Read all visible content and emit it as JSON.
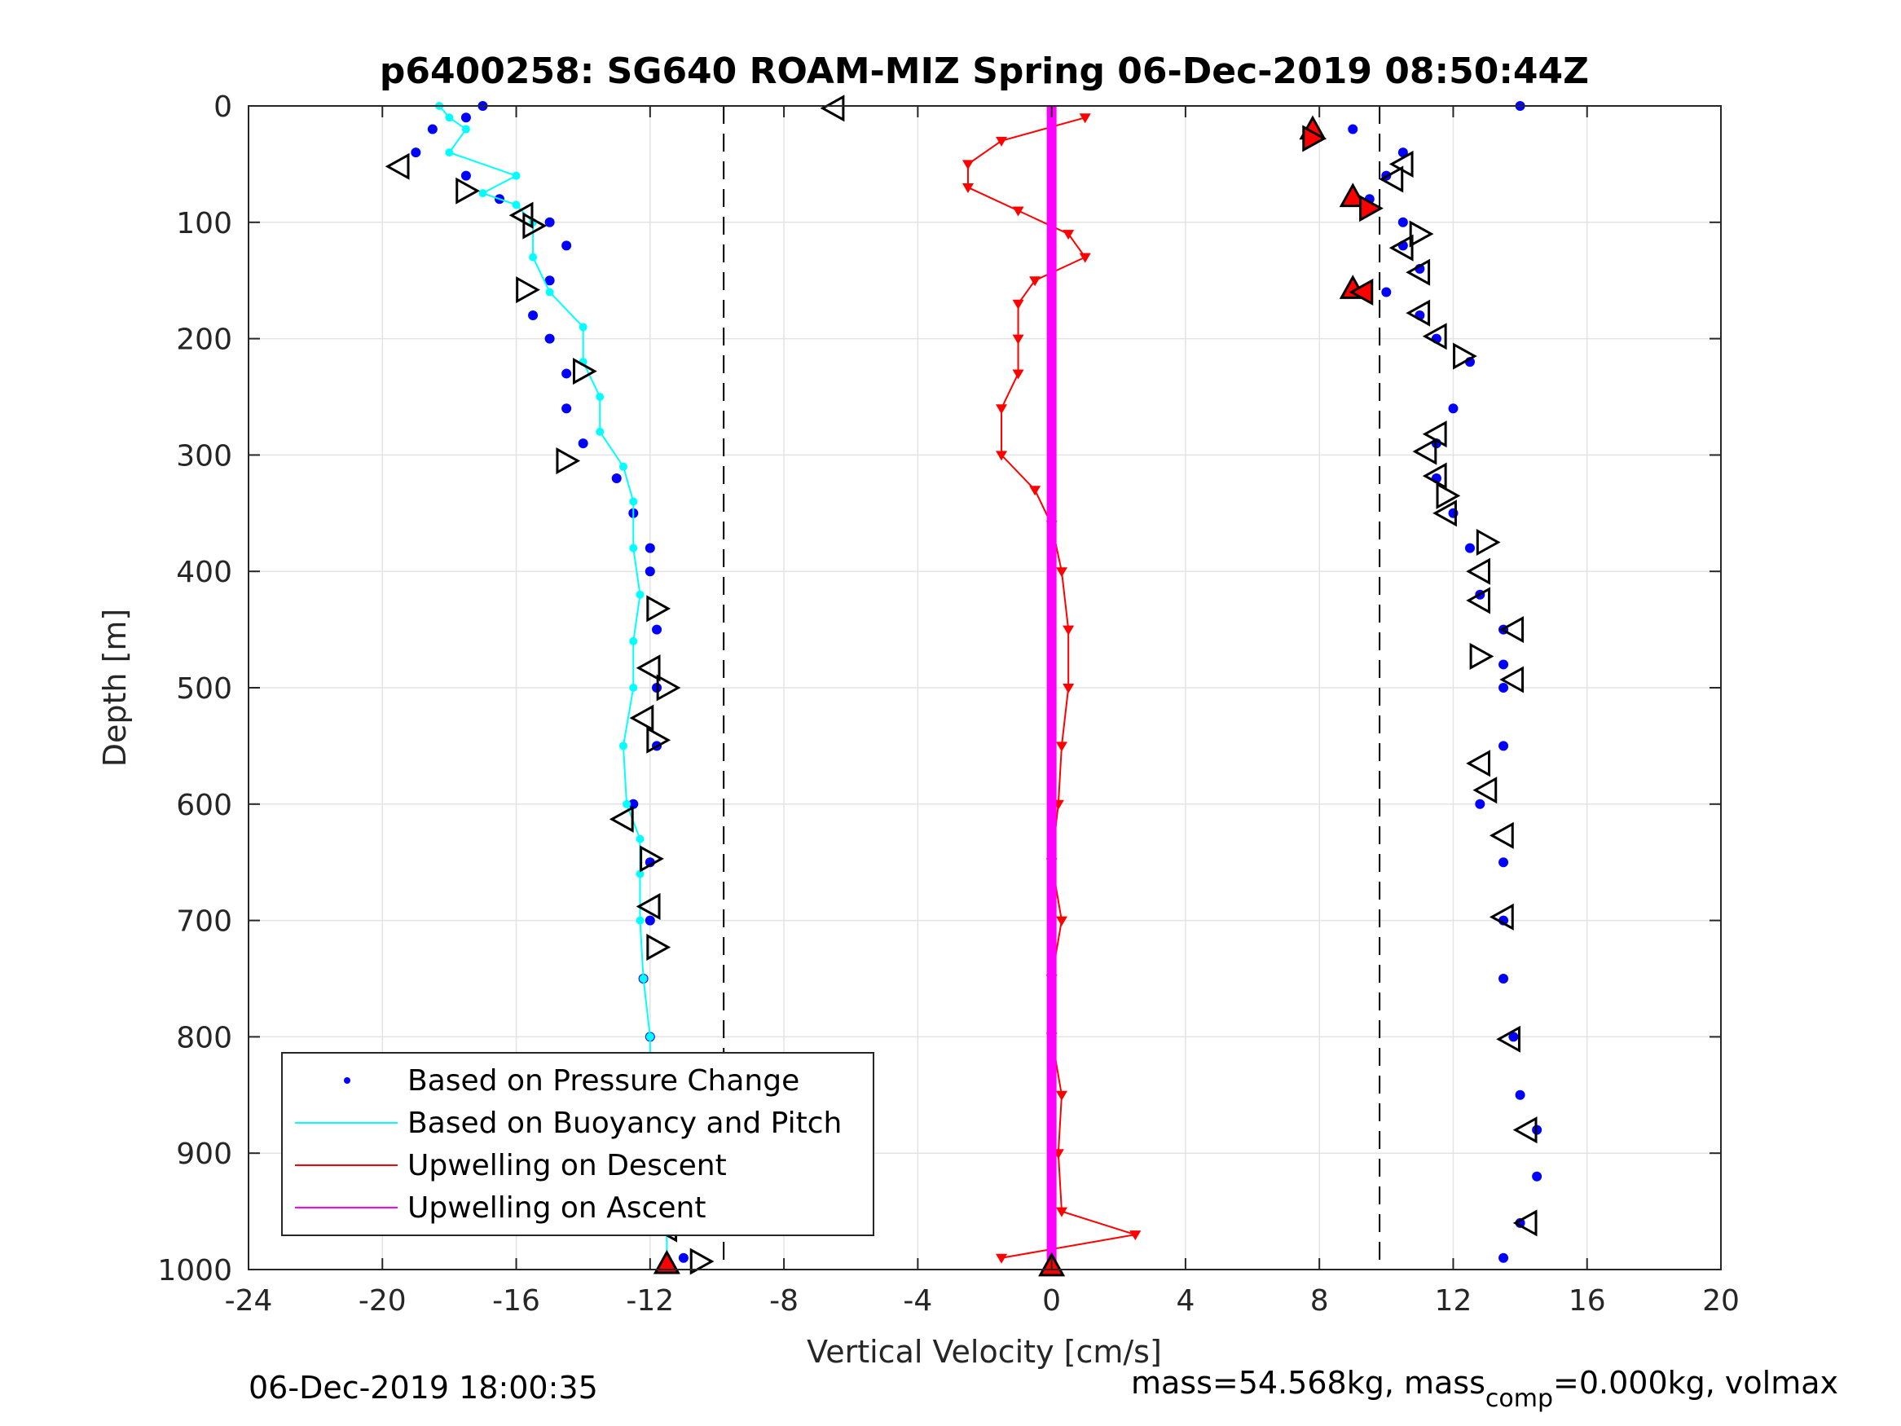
{
  "chart_data": {
    "type": "scatter",
    "title": "p6400258: SG640 ROAM-MIZ Spring 06-Dec-2019 08:50:44Z",
    "xlabel": "Vertical Velocity [cm/s]",
    "ylabel": "Depth [m]",
    "xlim": [
      -24,
      20
    ],
    "ylim": [
      0,
      1000
    ],
    "y_reversed": true,
    "grid": true,
    "x_ticks": [
      "-24",
      "-20",
      "-16",
      "-12",
      "-8",
      "-4",
      "0",
      "4",
      "8",
      "12",
      "16",
      "20"
    ],
    "y_ticks": [
      "0",
      "100",
      "200",
      "300",
      "400",
      "500",
      "600",
      "700",
      "800",
      "900",
      "1000"
    ],
    "dashed_vlines": [
      -9.8,
      9.8
    ],
    "legend_placement": "bottom-left",
    "legend": [
      {
        "label": "Based on Pressure Change",
        "color": "#0000ff",
        "style": "dots"
      },
      {
        "label": "Based on Buoyancy and Pitch",
        "color": "#00ffff",
        "style": "line"
      },
      {
        "label": "Upwelling on Descent",
        "color": "#ff0000",
        "style": "line"
      },
      {
        "label": "Upwelling on Ascent",
        "color": "#ff00ff",
        "style": "line"
      }
    ],
    "series": [
      {
        "name": "Based on Pressure Change (descent)",
        "color": "#0000ff",
        "depth": [
          0,
          10,
          20,
          40,
          60,
          80,
          100,
          120,
          150,
          180,
          200,
          230,
          260,
          290,
          320,
          350,
          380,
          400,
          450,
          500,
          550,
          600,
          650,
          700,
          750,
          800,
          850,
          900,
          950,
          990
        ],
        "velocity": [
          -17.0,
          -17.5,
          -18.5,
          -19.0,
          -17.5,
          -16.5,
          -15.0,
          -14.5,
          -15.0,
          -15.5,
          -15.0,
          -14.5,
          -14.5,
          -14.0,
          -13.0,
          -12.5,
          -12.0,
          -12.0,
          -11.8,
          -11.8,
          -11.8,
          -12.5,
          -12.0,
          -12.0,
          -12.2,
          -12.0,
          -11.8,
          -11.7,
          -11.3,
          -11.0
        ]
      },
      {
        "name": "Based on Pressure Change (ascent)",
        "color": "#0000ff",
        "depth": [
          0,
          20,
          40,
          60,
          80,
          100,
          120,
          140,
          160,
          180,
          200,
          220,
          260,
          290,
          320,
          350,
          380,
          420,
          450,
          480,
          500,
          550,
          600,
          650,
          700,
          750,
          800,
          850,
          880,
          920,
          960,
          990
        ],
        "velocity": [
          14.0,
          9.0,
          10.5,
          10.0,
          9.5,
          10.5,
          10.5,
          11.0,
          10.0,
          11.0,
          11.5,
          12.5,
          12.0,
          11.5,
          11.5,
          12.0,
          12.5,
          12.8,
          13.5,
          13.5,
          13.5,
          13.5,
          12.8,
          13.5,
          13.5,
          13.5,
          13.8,
          14.0,
          14.5,
          14.5,
          14.0,
          13.5
        ]
      },
      {
        "name": "Based on Buoyancy and Pitch",
        "color": "#00ffff",
        "depth": [
          0,
          10,
          20,
          40,
          60,
          75,
          85,
          100,
          130,
          160,
          190,
          220,
          250,
          280,
          310,
          340,
          380,
          420,
          460,
          500,
          550,
          600,
          630,
          660,
          700,
          750,
          800,
          850,
          900,
          950,
          990
        ],
        "velocity": [
          -18.3,
          -18.0,
          -17.5,
          -18.0,
          -16.0,
          -17.0,
          -16.0,
          -15.5,
          -15.5,
          -15.0,
          -14.0,
          -14.0,
          -13.5,
          -13.5,
          -12.8,
          -12.5,
          -12.5,
          -12.3,
          -12.5,
          -12.5,
          -12.8,
          -12.7,
          -12.3,
          -12.3,
          -12.3,
          -12.2,
          -12.0,
          -12.0,
          -11.8,
          -11.5,
          -11.5
        ]
      },
      {
        "name": "Upwelling on Descent",
        "color": "#ff0000",
        "depth": [
          10,
          30,
          50,
          70,
          90,
          110,
          130,
          150,
          170,
          200,
          230,
          260,
          300,
          330,
          360,
          400,
          450,
          500,
          550,
          600,
          650,
          700,
          750,
          800,
          850,
          900,
          950,
          970,
          990
        ],
        "velocity": [
          1.0,
          -1.5,
          -2.5,
          -2.5,
          -1.0,
          0.5,
          1.0,
          -0.5,
          -1.0,
          -1.0,
          -1.0,
          -1.5,
          -1.5,
          -0.5,
          0.0,
          0.3,
          0.5,
          0.5,
          0.3,
          0.2,
          0.0,
          0.3,
          0.0,
          0.0,
          0.3,
          0.2,
          0.3,
          2.5,
          -1.5
        ]
      },
      {
        "name": "Upwelling on Ascent",
        "color": "#ff00ff",
        "depth": [
          0,
          1000
        ],
        "velocity": [
          0.0,
          0.0
        ]
      }
    ],
    "markers": [
      {
        "velocity": -6.5,
        "depth": 2,
        "shape": "left"
      },
      {
        "velocity": -19.5,
        "depth": 52,
        "shape": "left"
      },
      {
        "velocity": -17.5,
        "depth": 73,
        "shape": "right"
      },
      {
        "velocity": -15.8,
        "depth": 94,
        "shape": "left"
      },
      {
        "velocity": -15.5,
        "depth": 103,
        "shape": "right"
      },
      {
        "velocity": -15.7,
        "depth": 158,
        "shape": "right"
      },
      {
        "velocity": -14.0,
        "depth": 228,
        "shape": "right"
      },
      {
        "velocity": -14.5,
        "depth": 305,
        "shape": "right"
      },
      {
        "velocity": -11.8,
        "depth": 432,
        "shape": "right"
      },
      {
        "velocity": -12.0,
        "depth": 483,
        "shape": "left"
      },
      {
        "velocity": -11.5,
        "depth": 500,
        "shape": "right"
      },
      {
        "velocity": -12.2,
        "depth": 526,
        "shape": "left"
      },
      {
        "velocity": -11.8,
        "depth": 545,
        "shape": "right"
      },
      {
        "velocity": -12.8,
        "depth": 613,
        "shape": "left"
      },
      {
        "velocity": -12.0,
        "depth": 647,
        "shape": "right"
      },
      {
        "velocity": -12.0,
        "depth": 688,
        "shape": "left"
      },
      {
        "velocity": -11.8,
        "depth": 723,
        "shape": "right"
      },
      {
        "velocity": -11.5,
        "depth": 965,
        "shape": "left"
      },
      {
        "velocity": -10.5,
        "depth": 993,
        "shape": "right"
      },
      {
        "velocity": 7.8,
        "depth": 20,
        "shape": "up-red"
      },
      {
        "velocity": 7.8,
        "depth": 28,
        "shape": "right-red"
      },
      {
        "velocity": 10.5,
        "depth": 50,
        "shape": "left"
      },
      {
        "velocity": 10.2,
        "depth": 63,
        "shape": "left"
      },
      {
        "velocity": 9.0,
        "depth": 78,
        "shape": "up-red"
      },
      {
        "velocity": 9.5,
        "depth": 88,
        "shape": "right-red"
      },
      {
        "velocity": 11.0,
        "depth": 110,
        "shape": "right"
      },
      {
        "velocity": 10.5,
        "depth": 122,
        "shape": "left"
      },
      {
        "velocity": 11.0,
        "depth": 143,
        "shape": "left"
      },
      {
        "velocity": 9.0,
        "depth": 157,
        "shape": "up-red"
      },
      {
        "velocity": 9.3,
        "depth": 160,
        "shape": "left-red"
      },
      {
        "velocity": 11.0,
        "depth": 178,
        "shape": "left"
      },
      {
        "velocity": 11.5,
        "depth": 198,
        "shape": "left"
      },
      {
        "velocity": 12.3,
        "depth": 215,
        "shape": "right"
      },
      {
        "velocity": 11.5,
        "depth": 282,
        "shape": "left"
      },
      {
        "velocity": 11.2,
        "depth": 297,
        "shape": "left"
      },
      {
        "velocity": 11.5,
        "depth": 318,
        "shape": "left"
      },
      {
        "velocity": 11.8,
        "depth": 335,
        "shape": "right"
      },
      {
        "velocity": 11.8,
        "depth": 350,
        "shape": "left"
      },
      {
        "velocity": 13.0,
        "depth": 375,
        "shape": "right"
      },
      {
        "velocity": 12.8,
        "depth": 400,
        "shape": "left"
      },
      {
        "velocity": 12.8,
        "depth": 425,
        "shape": "left"
      },
      {
        "velocity": 13.8,
        "depth": 450,
        "shape": "left"
      },
      {
        "velocity": 12.8,
        "depth": 473,
        "shape": "right"
      },
      {
        "velocity": 13.8,
        "depth": 493,
        "shape": "left"
      },
      {
        "velocity": 12.8,
        "depth": 565,
        "shape": "left"
      },
      {
        "velocity": 13.0,
        "depth": 588,
        "shape": "left"
      },
      {
        "velocity": 13.5,
        "depth": 627,
        "shape": "left"
      },
      {
        "velocity": 13.5,
        "depth": 697,
        "shape": "left"
      },
      {
        "velocity": 13.7,
        "depth": 802,
        "shape": "left"
      },
      {
        "velocity": 14.2,
        "depth": 880,
        "shape": "left"
      },
      {
        "velocity": 14.2,
        "depth": 960,
        "shape": "left"
      },
      {
        "velocity": -11.5,
        "depth": 995,
        "shape": "up-red"
      },
      {
        "velocity": 0.0,
        "depth": 997,
        "shape": "up-red"
      }
    ]
  },
  "footer": {
    "timestamp": "06-Dec-2019 18:00:35",
    "mass_prefix": "mass=54.568kg, mass",
    "mass_sub": "comp",
    "mass_suffix": "=0.000kg, volmax"
  }
}
